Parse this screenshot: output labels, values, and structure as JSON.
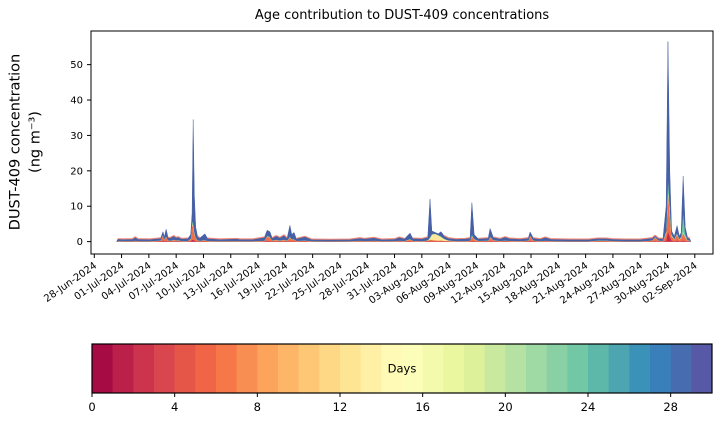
{
  "chart_data": {
    "type": "area",
    "title": "Age contribution to DUST-409 concentrations",
    "ylabel_line1": "DUST-409 concentration",
    "ylabel_line2": "(ng m⁻³)",
    "legend": "none",
    "grid": false,
    "ylim": [
      -3.5,
      59.5
    ],
    "xlim_days": [
      0.64,
      69.0
    ],
    "y_ticks": [
      0,
      10,
      20,
      30,
      40,
      50
    ],
    "x_tick_days": [
      1,
      4,
      7,
      10,
      13,
      16,
      19,
      22,
      25,
      28,
      31,
      34,
      37,
      40,
      43,
      46,
      49,
      52,
      55,
      58,
      61,
      64,
      67
    ],
    "x_tick_labels": [
      "28-Jun-2024",
      "01-Jul-2024",
      "04-Jul-2024",
      "07-Jul-2024",
      "10-Jul-2024",
      "13-Jul-2024",
      "16-Jul-2024",
      "19-Jul-2024",
      "22-Jul-2024",
      "25-Jul-2024",
      "28-Jul-2024",
      "31-Jul-2024",
      "03-Aug-2024",
      "06-Aug-2024",
      "09-Aug-2024",
      "12-Aug-2024",
      "15-Aug-2024",
      "18-Aug-2024",
      "21-Aug-2024",
      "24-Aug-2024",
      "27-Aug-2024",
      "30-Aug-2024",
      "02-Sep-2024"
    ],
    "bands": [
      {
        "name": "age-0-2-days",
        "color": "#c32a4c"
      },
      {
        "name": "age-2-8-days",
        "color": "#ef6f4b"
      },
      {
        "name": "age-8-16-days",
        "color": "#fde89b"
      },
      {
        "name": "age-16-24-days",
        "color": "#6ec6a4"
      },
      {
        "name": "age-24-30-days",
        "color": "#4660a6"
      }
    ],
    "baseline_highlight_color": "#ef8878",
    "flat_threshold": 1.9,
    "points": [
      [
        3.45,
        0,
        0,
        0,
        0,
        0
      ],
      [
        3.6,
        0.05,
        0.1,
        0.04,
        0.04,
        0.5
      ],
      [
        4.2,
        0.04,
        0.08,
        0.04,
        0.04,
        0.45
      ],
      [
        5.2,
        0.04,
        0.08,
        0.04,
        0.04,
        0.5
      ],
      [
        5.5,
        0.06,
        0.15,
        0.05,
        0.05,
        0.95
      ],
      [
        5.8,
        0.04,
        0.08,
        0.04,
        0.04,
        0.5
      ],
      [
        7.1,
        0.04,
        0.08,
        0.04,
        0.04,
        0.45
      ],
      [
        8.3,
        0.05,
        0.2,
        0.05,
        0.05,
        0.6
      ],
      [
        8.55,
        0.3,
        1.5,
        0.1,
        0.1,
        0.8
      ],
      [
        8.7,
        0.1,
        0.5,
        0.05,
        0.05,
        0.6
      ],
      [
        8.9,
        0.2,
        1.2,
        0.1,
        0.1,
        1.9
      ],
      [
        9.1,
        0.05,
        0.3,
        0.05,
        0.05,
        0.75
      ],
      [
        9.3,
        0.04,
        0.15,
        0.04,
        0.04,
        0.73
      ],
      [
        9.75,
        0.1,
        0.4,
        0.05,
        0.05,
        1.0
      ],
      [
        10.0,
        0.05,
        0.2,
        0.05,
        0.05,
        0.75
      ],
      [
        10.2,
        0.06,
        0.3,
        0.05,
        0.05,
        0.84
      ],
      [
        10.6,
        0.04,
        0.1,
        0.04,
        0.04,
        0.58
      ],
      [
        11.3,
        0.04,
        0.1,
        0.04,
        0.04,
        0.68
      ],
      [
        11.6,
        0.1,
        0.6,
        0.1,
        0.1,
        1.1
      ],
      [
        11.75,
        0.5,
        4.5,
        0.3,
        0.3,
        2.4
      ],
      [
        11.87,
        0.6,
        3.6,
        0.3,
        1.0,
        29.0
      ],
      [
        12.0,
        0.3,
        2.0,
        0.2,
        0.5,
        10.0
      ],
      [
        12.15,
        0.15,
        0.8,
        0.1,
        0.1,
        2.85
      ],
      [
        12.35,
        0.06,
        0.3,
        0.05,
        0.05,
        1.04
      ],
      [
        12.6,
        0.04,
        0.15,
        0.04,
        0.04,
        0.73
      ],
      [
        13.15,
        0.06,
        0.3,
        0.06,
        0.06,
        1.72
      ],
      [
        13.45,
        0.04,
        0.12,
        0.04,
        0.04,
        0.66
      ],
      [
        14.8,
        0.04,
        0.08,
        0.04,
        0.04,
        0.45
      ],
      [
        16.7,
        0.04,
        0.1,
        0.04,
        0.04,
        0.58
      ],
      [
        17.0,
        0.04,
        0.08,
        0.04,
        0.04,
        0.45
      ],
      [
        18.4,
        0.04,
        0.08,
        0.04,
        0.04,
        0.45
      ],
      [
        19.7,
        0.05,
        0.15,
        0.05,
        0.05,
        0.9
      ],
      [
        20.0,
        0.2,
        1.3,
        0.1,
        0.1,
        1.5
      ],
      [
        20.3,
        0.15,
        1.0,
        0.1,
        0.1,
        1.45
      ],
      [
        20.55,
        0.05,
        0.2,
        0.05,
        0.05,
        0.65
      ],
      [
        21.0,
        0.08,
        0.4,
        0.06,
        0.06,
        1.0
      ],
      [
        21.4,
        0.05,
        0.2,
        0.05,
        0.05,
        0.75
      ],
      [
        21.85,
        0.08,
        0.4,
        0.06,
        0.06,
        1.2
      ],
      [
        22.2,
        0.05,
        0.2,
        0.05,
        0.05,
        0.65
      ],
      [
        22.5,
        0.15,
        1.0,
        0.1,
        0.2,
        3.15
      ],
      [
        22.7,
        0.08,
        0.5,
        0.06,
        0.06,
        1.3
      ],
      [
        22.95,
        0.08,
        0.5,
        0.06,
        0.06,
        1.9
      ],
      [
        23.2,
        0.04,
        0.15,
        0.04,
        0.04,
        0.53
      ],
      [
        24.15,
        0.05,
        0.2,
        0.05,
        0.05,
        1.05
      ],
      [
        24.9,
        0.04,
        0.08,
        0.04,
        0.04,
        0.4
      ],
      [
        26.9,
        0.03,
        0.07,
        0.03,
        0.03,
        0.39
      ],
      [
        29.1,
        0.04,
        0.08,
        0.04,
        0.04,
        0.4
      ],
      [
        30.2,
        0.05,
        0.15,
        0.05,
        0.05,
        0.7
      ],
      [
        30.7,
        0.04,
        0.1,
        0.04,
        0.04,
        0.58
      ],
      [
        31.75,
        0.05,
        0.15,
        0.05,
        0.05,
        0.8
      ],
      [
        32.6,
        0.04,
        0.08,
        0.04,
        0.04,
        0.4
      ],
      [
        34.0,
        0.04,
        0.1,
        0.04,
        0.04,
        0.48
      ],
      [
        34.5,
        0.05,
        0.15,
        0.05,
        0.05,
        0.9
      ],
      [
        35.1,
        0.04,
        0.12,
        0.04,
        0.04,
        0.56
      ],
      [
        35.7,
        0.08,
        0.5,
        0.08,
        0.08,
        1.66
      ],
      [
        36.0,
        0.04,
        0.15,
        0.04,
        0.04,
        0.63
      ],
      [
        37.0,
        0.04,
        0.1,
        0.04,
        0.04,
        0.58
      ],
      [
        37.65,
        0.05,
        0.2,
        0.08,
        0.06,
        0.81
      ],
      [
        37.9,
        0.1,
        0.5,
        0.4,
        0.3,
        10.7
      ],
      [
        38.1,
        0.1,
        0.4,
        1.5,
        0.15,
        0.85
      ],
      [
        38.45,
        0.08,
        0.3,
        1.8,
        0.12,
        0.3
      ],
      [
        38.8,
        0.06,
        0.25,
        1.5,
        0.1,
        0.3
      ],
      [
        39.1,
        0.06,
        0.3,
        1.0,
        0.15,
        1.3
      ],
      [
        39.45,
        0.05,
        0.2,
        0.5,
        0.1,
        0.75
      ],
      [
        39.9,
        0.04,
        0.15,
        0.15,
        0.06,
        0.6
      ],
      [
        40.75,
        0.04,
        0.1,
        0.04,
        0.04,
        0.48
      ],
      [
        41.75,
        0.04,
        0.1,
        0.04,
        0.04,
        0.58
      ],
      [
        42.3,
        0.05,
        0.15,
        0.05,
        0.05,
        0.7
      ],
      [
        42.5,
        0.2,
        1.3,
        0.15,
        0.4,
        8.95
      ],
      [
        42.75,
        0.1,
        0.5,
        0.08,
        0.12,
        1.2
      ],
      [
        43.2,
        0.04,
        0.15,
        0.04,
        0.04,
        0.53
      ],
      [
        44.3,
        0.05,
        0.2,
        0.05,
        0.05,
        0.65
      ],
      [
        44.5,
        0.15,
        1.0,
        0.1,
        0.15,
        2.3
      ],
      [
        44.85,
        0.06,
        0.3,
        0.05,
        0.05,
        0.74
      ],
      [
        45.6,
        0.04,
        0.12,
        0.04,
        0.04,
        0.56
      ],
      [
        46.15,
        0.05,
        0.2,
        0.05,
        0.05,
        0.95
      ],
      [
        46.6,
        0.04,
        0.15,
        0.04,
        0.04,
        0.63
      ],
      [
        47.8,
        0.04,
        0.1,
        0.04,
        0.04,
        0.48
      ],
      [
        48.7,
        0.05,
        0.2,
        0.05,
        0.05,
        0.65
      ],
      [
        48.9,
        0.2,
        1.4,
        0.1,
        0.1,
        0.9
      ],
      [
        49.25,
        0.05,
        0.2,
        0.05,
        0.05,
        0.65
      ],
      [
        50.0,
        0.04,
        0.1,
        0.04,
        0.04,
        0.48
      ],
      [
        50.55,
        0.05,
        0.15,
        0.05,
        0.05,
        0.9
      ],
      [
        51.2,
        0.04,
        0.1,
        0.04,
        0.04,
        0.48
      ],
      [
        53.3,
        0.03,
        0.08,
        0.03,
        0.03,
        0.43
      ],
      [
        55.3,
        0.03,
        0.08,
        0.03,
        0.03,
        0.43
      ],
      [
        56.3,
        0.05,
        0.15,
        0.08,
        0.07,
        0.55
      ],
      [
        57.3,
        0.05,
        0.15,
        0.08,
        0.07,
        0.55
      ],
      [
        57.9,
        0.04,
        0.1,
        0.05,
        0.05,
        0.46
      ],
      [
        59.3,
        0.03,
        0.08,
        0.03,
        0.03,
        0.43
      ],
      [
        61.0,
        0.03,
        0.08,
        0.03,
        0.03,
        0.43
      ],
      [
        62.3,
        0.05,
        0.2,
        0.05,
        0.05,
        0.65
      ],
      [
        62.65,
        0.15,
        1.0,
        0.08,
        0.07,
        0.4
      ],
      [
        63.0,
        0.05,
        0.2,
        0.05,
        0.05,
        0.55
      ],
      [
        63.5,
        0.04,
        0.15,
        0.04,
        0.04,
        0.53
      ],
      [
        63.85,
        0.3,
        2.0,
        0.3,
        0.4,
        7.0
      ],
      [
        64.05,
        3.0,
        11.0,
        1.0,
        3.5,
        38.0
      ],
      [
        64.25,
        1.5,
        6.5,
        0.8,
        2.0,
        9.2
      ],
      [
        64.45,
        0.3,
        1.2,
        0.2,
        0.3,
        1.0
      ],
      [
        64.75,
        0.1,
        0.5,
        0.1,
        0.1,
        0.7
      ],
      [
        65.05,
        0.3,
        1.7,
        0.2,
        0.3,
        2.0
      ],
      [
        65.3,
        0.1,
        0.5,
        0.1,
        0.1,
        0.7
      ],
      [
        65.5,
        0.15,
        0.8,
        0.15,
        0.3,
        1.1
      ],
      [
        65.72,
        0.3,
        2.2,
        0.4,
        5.6,
        10.0
      ],
      [
        65.95,
        0.15,
        1.0,
        0.2,
        1.0,
        1.65
      ],
      [
        66.2,
        0.06,
        0.3,
        0.06,
        0.1,
        0.68
      ],
      [
        66.45,
        0.04,
        0.15,
        0.04,
        0.04,
        0.53
      ],
      [
        66.55,
        0,
        0,
        0,
        0,
        0
      ]
    ],
    "colorbar": {
      "label": "Days",
      "ticks": [
        0,
        4,
        8,
        12,
        16,
        20,
        24,
        28
      ],
      "vmin": 0,
      "vmax": 30,
      "n_segments": 30,
      "spectral_anchors": [
        "#9e0142",
        "#d53e4f",
        "#f46d43",
        "#fdae61",
        "#fee08b",
        "#ffffbf",
        "#e6f598",
        "#abdda4",
        "#66c2a5",
        "#3288bd",
        "#5e4fa2"
      ]
    }
  }
}
